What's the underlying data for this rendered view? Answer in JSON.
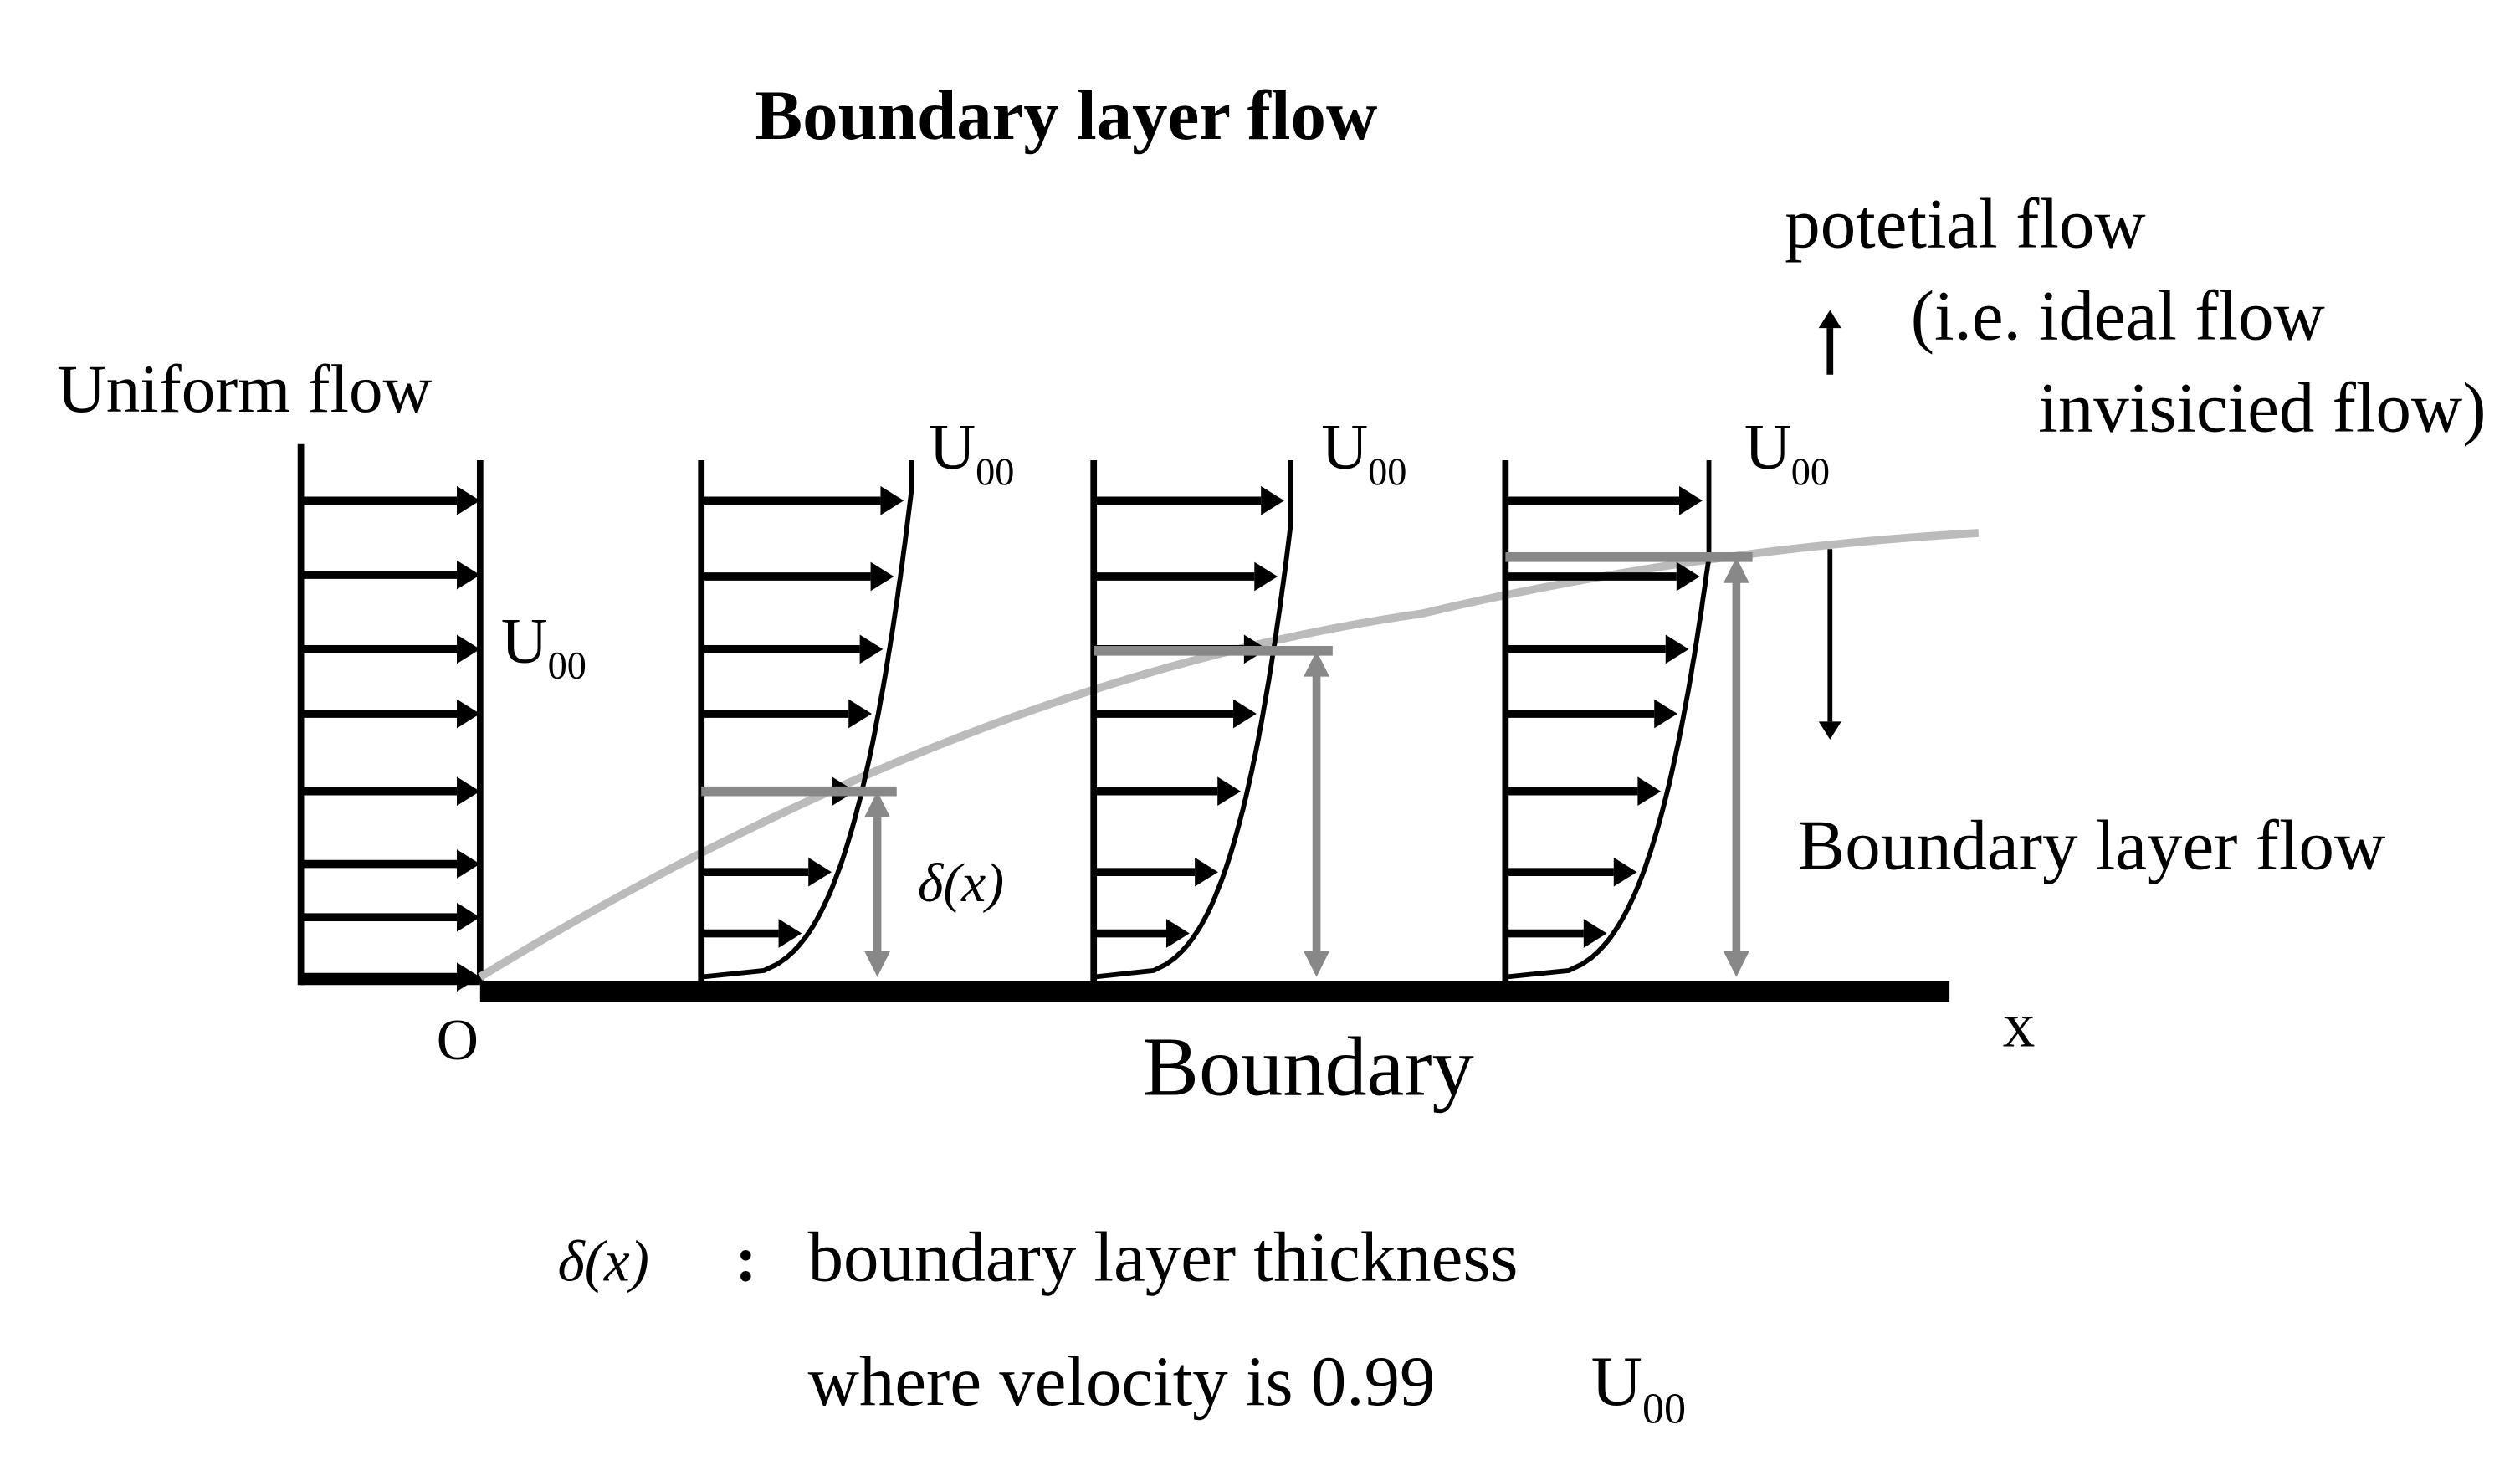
{
  "title": "Boundary layer flow",
  "labels": {
    "uniform_flow": "Uniform flow",
    "origin": "O",
    "x_axis": "x",
    "boundary": "Boundary",
    "delta": "δ(x)",
    "boundary_layer_flow": "Boundary layer flow",
    "potential_flow": [
      "potetial flow",
      "(i.e. ideal flow",
      "invisicied flow)"
    ]
  },
  "velocity_labels": [
    {
      "base": "U",
      "sub": "00"
    },
    {
      "base": "U",
      "sub": "00"
    },
    {
      "base": "U",
      "sub": "00"
    },
    {
      "base": "U",
      "sub": "00"
    }
  ],
  "legend": {
    "symbol": "δ(x)",
    "separator": ":",
    "lines": [
      "boundary layer thickness",
      "where velocity is 0.99"
    ],
    "unit": {
      "base": "U",
      "sub": "00"
    }
  }
}
